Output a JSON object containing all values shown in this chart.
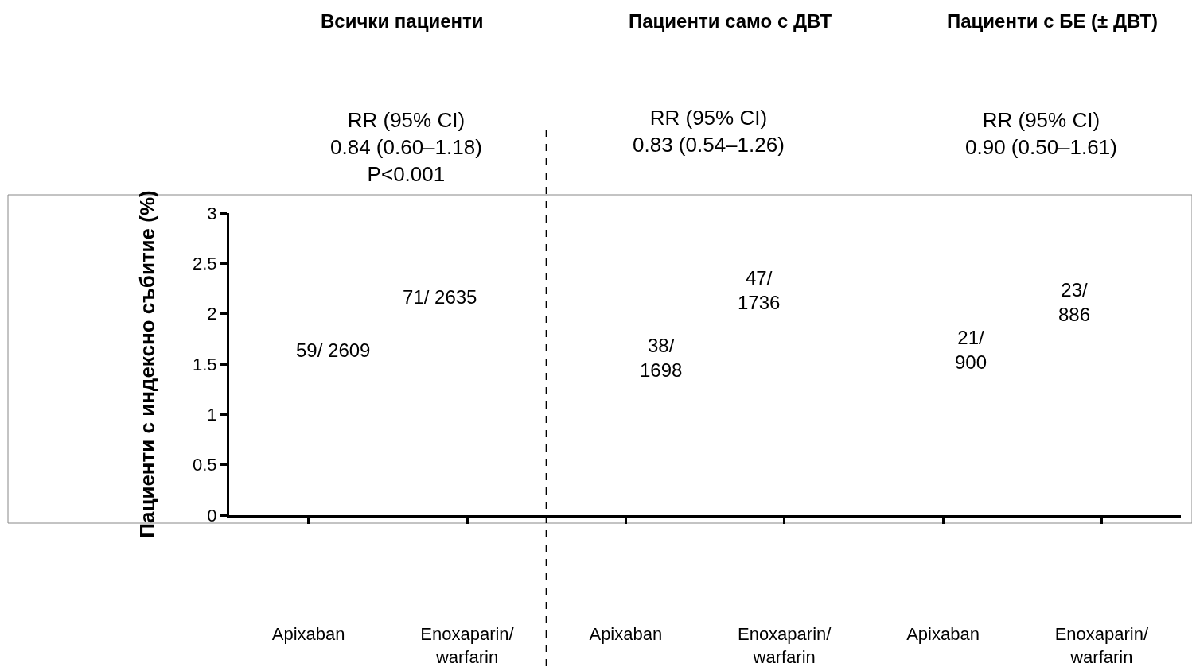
{
  "chart_data": {
    "type": "bar",
    "ylabel": "Пациенти с индексно събитие (%)",
    "categories": [
      "Apixaban",
      "Enoxaparin/\nwarfarin",
      "Apixaban",
      "Enoxaparin/\nwarfarin",
      "Apixaban",
      "Enoxaparin/\nwarfarin"
    ],
    "values": [
      null,
      null,
      null,
      null,
      null,
      null
    ],
    "ylim": [
      0,
      3
    ],
    "yticks": [
      0,
      0.5,
      1,
      1.5,
      2,
      2.5,
      3
    ],
    "annotations": [
      "Всички пациенти",
      "Пациенти само с ДВТ",
      "Пациенти с БЕ (± ДВТ)",
      "RR (95% CI)\n0.84 (0.60–1.18)\nP<0.001",
      "RR (95% CI)\n0.83 (0.54–1.26)",
      "RR (95% CI)\n0.90 (0.50–1.61)",
      "59/ 2609",
      "71/ 2635",
      "38/\n1698",
      "47/\n1736",
      "21/\n900",
      "23/\n886"
    ]
  }
}
